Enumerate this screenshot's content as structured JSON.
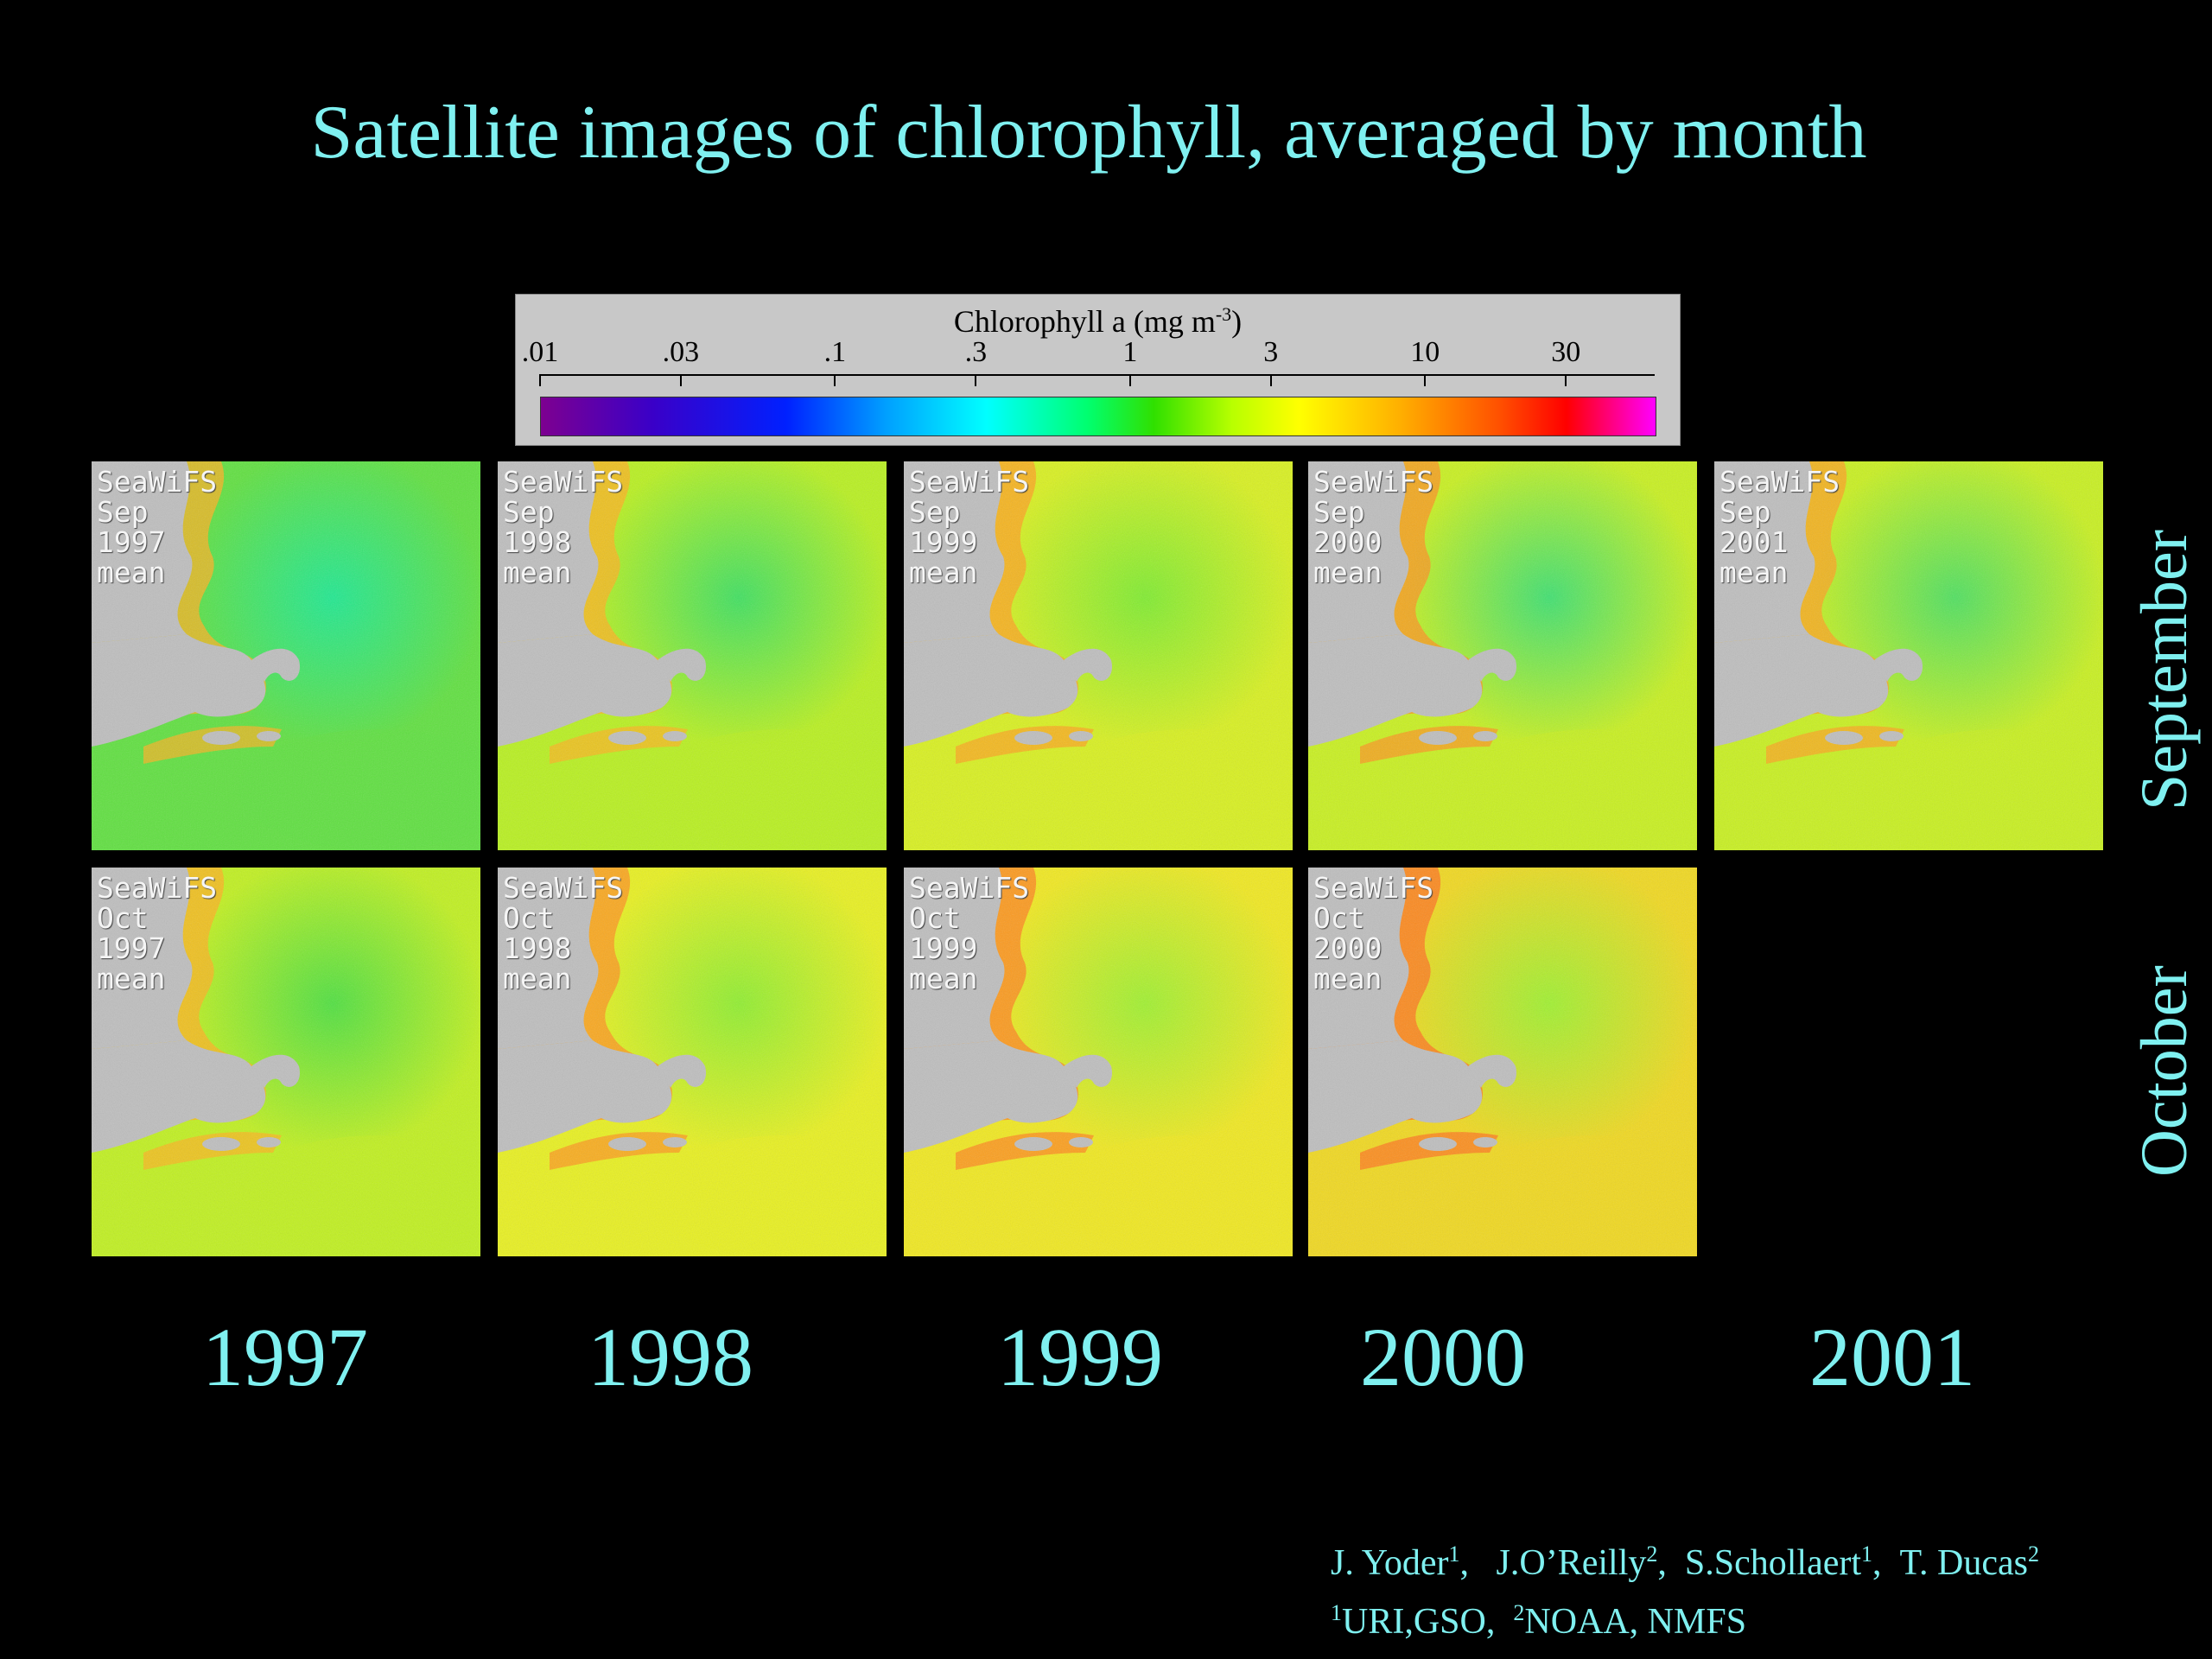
{
  "title": "Satellite images of chlorophyll, averaged by month",
  "colorbar": {
    "title": "Chlorophyll a (mg m",
    "title_sup": "-3",
    "title_end": ")",
    "ticks": [
      ".01",
      ".03",
      ".1",
      ".3",
      "1",
      "3",
      "10",
      "30"
    ],
    "colors": [
      "#7d0090",
      "#0020ff",
      "#00ffff",
      "#30e000",
      "#ffff00",
      "#ff5000",
      "#ff0000",
      "#ff00ff"
    ]
  },
  "panels": {
    "sep1997": {
      "sensor": "SeaWiFS",
      "month": "Sep",
      "year": "1997",
      "stat": "mean"
    },
    "sep1998": {
      "sensor": "SeaWiFS",
      "month": "Sep",
      "year": "1998",
      "stat": "mean"
    },
    "sep1999": {
      "sensor": "SeaWiFS",
      "month": "Sep",
      "year": "1999",
      "stat": "mean"
    },
    "sep2000": {
      "sensor": "SeaWiFS",
      "month": "Sep",
      "year": "2000",
      "stat": "mean"
    },
    "sep2001": {
      "sensor": "SeaWiFS",
      "month": "Sep",
      "year": "2001",
      "stat": "mean"
    },
    "oct1997": {
      "sensor": "SeaWiFS",
      "month": "Oct",
      "year": "1997",
      "stat": "mean"
    },
    "oct1998": {
      "sensor": "SeaWiFS",
      "month": "Oct",
      "year": "1998",
      "stat": "mean"
    },
    "oct1999": {
      "sensor": "SeaWiFS",
      "month": "Oct",
      "year": "1999",
      "stat": "mean"
    },
    "oct2000": {
      "sensor": "SeaWiFS",
      "month": "Oct",
      "year": "2000",
      "stat": "mean"
    }
  },
  "rows": {
    "september": "September",
    "october": "October"
  },
  "years": [
    "1997",
    "1998",
    "1999",
    "2000",
    "2001"
  ],
  "authors": {
    "yoder": "J. Yoder",
    "oreilly": "J.O’Reilly",
    "schollaert": "S.Schollaert",
    "ducas": "T. Ducas",
    "s1": "1",
    "s2": "2",
    "affil1": "URI,GSO,",
    "affil2": "NOAA, NMFS"
  }
}
